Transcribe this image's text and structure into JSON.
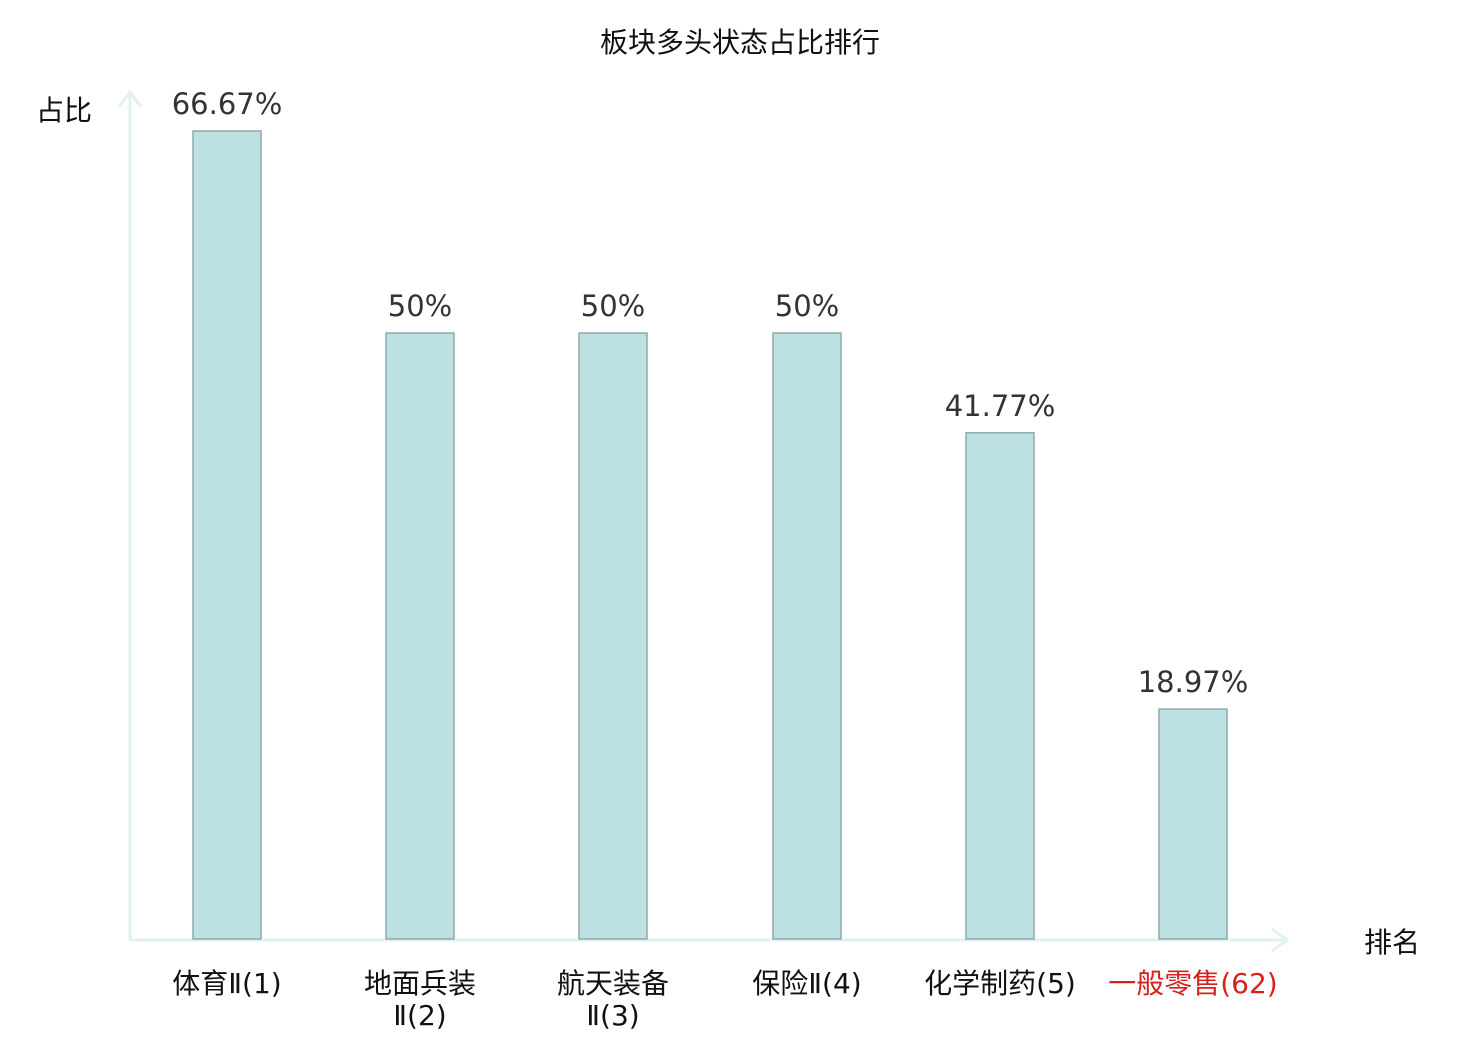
{
  "chart_data": {
    "type": "bar",
    "title": "板块多头状态占比排行",
    "ylabel": "占比",
    "xlabel": "排名",
    "ylim": [
      0,
      66.67
    ],
    "grid": false,
    "legend": "none",
    "categories": [
      {
        "lines": [
          "体育Ⅱ(1)"
        ],
        "highlight": false
      },
      {
        "lines": [
          "地面兵装",
          "Ⅱ(2)"
        ],
        "highlight": false
      },
      {
        "lines": [
          "航天装备",
          "Ⅱ(3)"
        ],
        "highlight": false
      },
      {
        "lines": [
          "保险Ⅱ(4)"
        ],
        "highlight": false
      },
      {
        "lines": [
          "化学制药(5)"
        ],
        "highlight": false
      },
      {
        "lines": [
          "一般零售(62)"
        ],
        "highlight": true
      }
    ],
    "values": [
      66.67,
      50,
      50,
      50,
      41.77,
      18.97
    ],
    "value_labels": [
      "66.67%",
      "50%",
      "50%",
      "50%",
      "41.77%",
      "18.97%"
    ],
    "colors": {
      "bar_fill": "#bde0e3",
      "bar_stroke": "#8fa9ab",
      "axis": "#e0f2ef",
      "highlight": "#d9211c"
    }
  }
}
